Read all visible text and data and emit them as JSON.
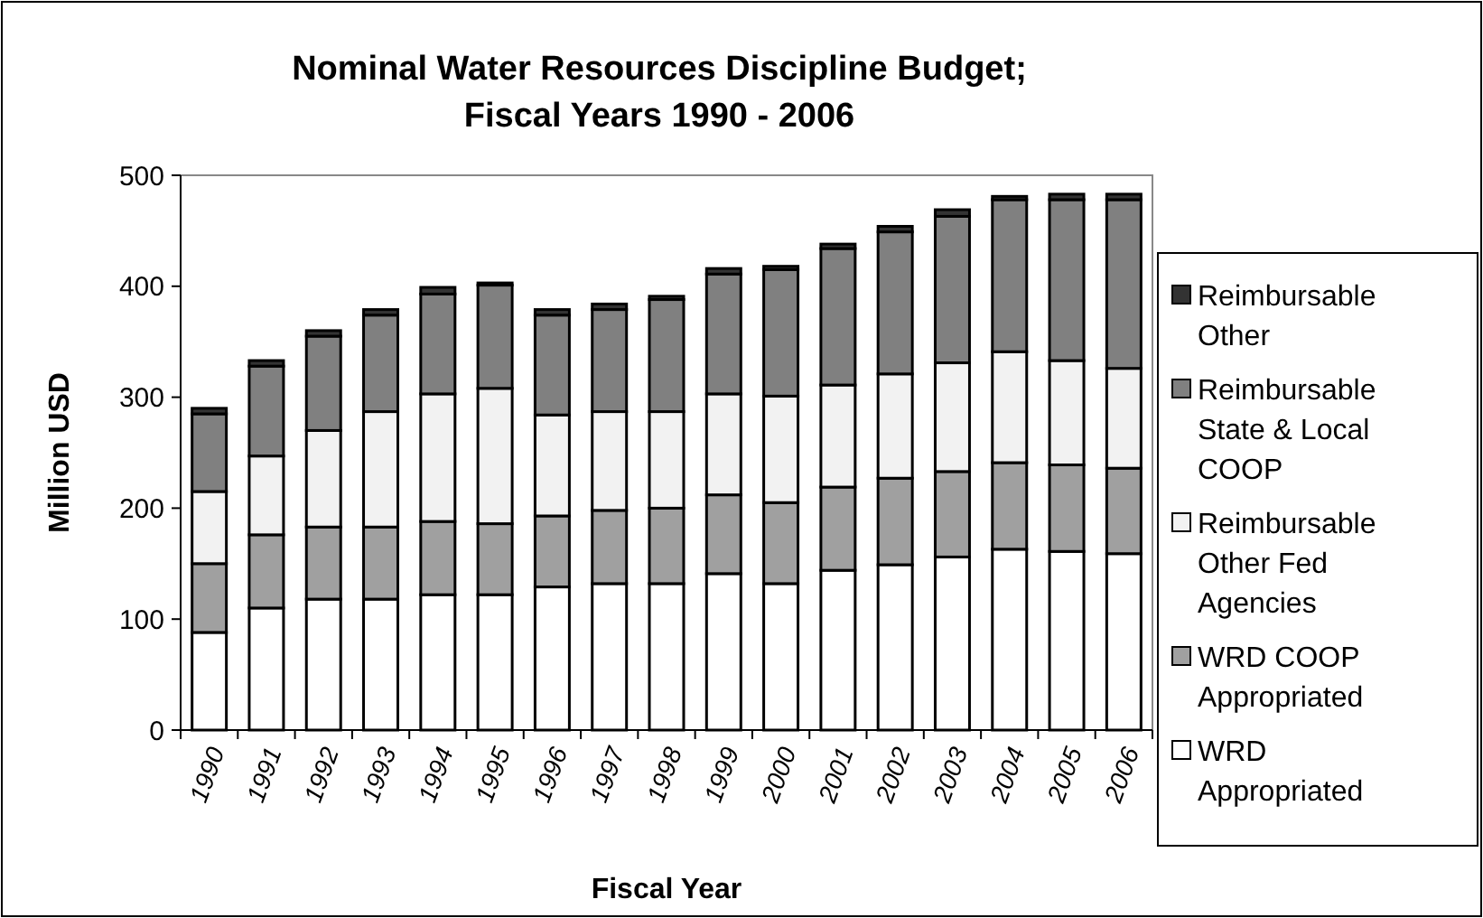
{
  "chart_data": {
    "type": "bar",
    "stacked": true,
    "title": "Nominal Water Resources Discipline Budget; Fiscal Years 1990 - 2006",
    "xlabel": "Fiscal Year",
    "ylabel": "Million USD",
    "categories": [
      "1990",
      "1991",
      "1992",
      "1993",
      "1994",
      "1995",
      "1996",
      "1997",
      "1998",
      "1999",
      "2000",
      "2001",
      "2002",
      "2003",
      "2004",
      "2005",
      "2006"
    ],
    "ylim": [
      0,
      500
    ],
    "yticks": [
      0,
      100,
      200,
      300,
      400,
      500
    ],
    "legend": "right",
    "grid": false,
    "series": [
      {
        "name": "WRD Appropriated",
        "color": "#ffffff",
        "values": [
          88,
          110,
          118,
          118,
          122,
          122,
          129,
          132,
          132,
          141,
          132,
          144,
          149,
          156,
          163,
          161,
          159
        ]
      },
      {
        "name": "WRD COOP Appropriated",
        "color": "#a0a0a0",
        "values": [
          62,
          66,
          65,
          65,
          66,
          64,
          64,
          66,
          68,
          71,
          73,
          75,
          78,
          77,
          78,
          78,
          77
        ]
      },
      {
        "name": "Reimbursable Other Fed Agencies",
        "color": "#f2f2f2",
        "values": [
          65,
          71,
          87,
          104,
          115,
          122,
          91,
          89,
          87,
          91,
          96,
          92,
          94,
          98,
          100,
          94,
          90
        ]
      },
      {
        "name": "Reimbursable State & Local COOP",
        "color": "#808080",
        "values": [
          70,
          81,
          85,
          87,
          90,
          93,
          90,
          92,
          101,
          108,
          114,
          123,
          128,
          132,
          137,
          145,
          152
        ]
      },
      {
        "name": "Reimbursable Other",
        "color": "#333333",
        "values": [
          5,
          5,
          5,
          5,
          6,
          2,
          5,
          5,
          3,
          5,
          3,
          4,
          5,
          6,
          3,
          5,
          5
        ]
      }
    ]
  }
}
